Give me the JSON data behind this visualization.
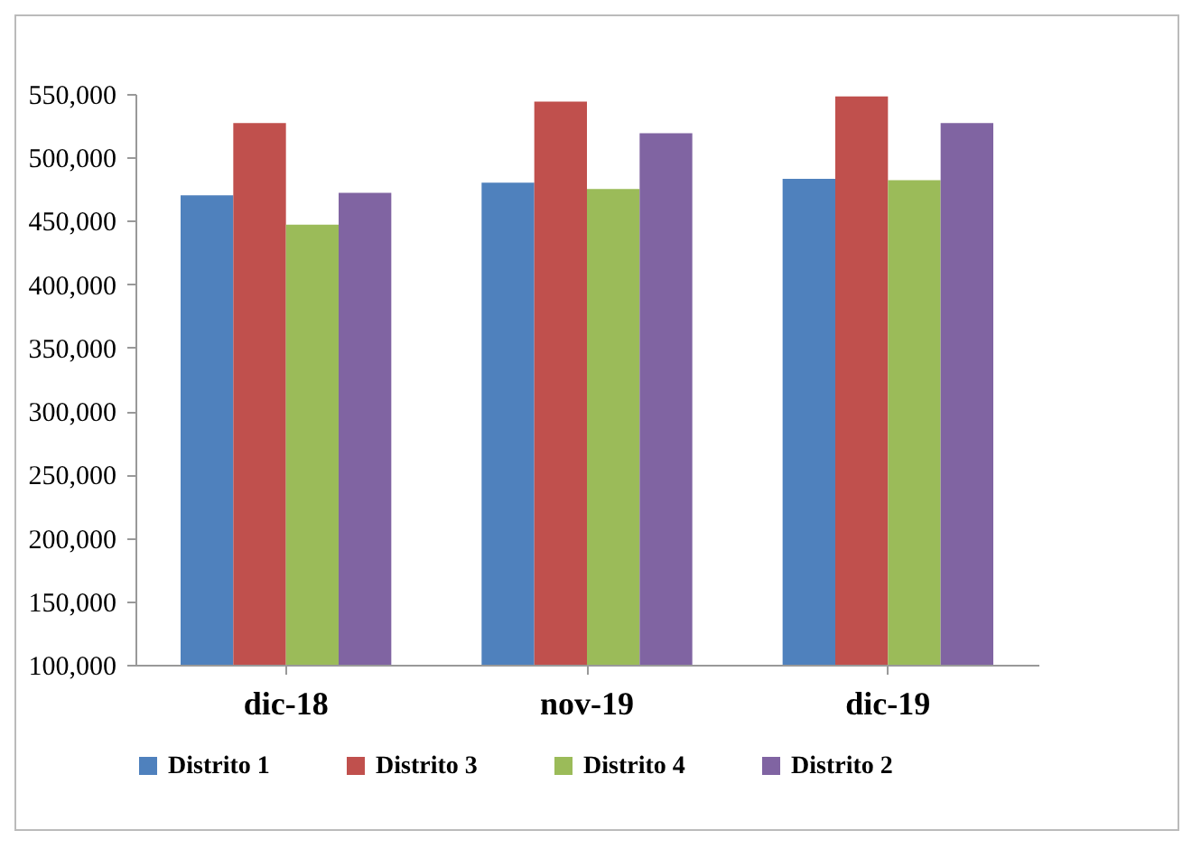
{
  "chart_data": {
    "type": "bar",
    "categories": [
      "dic-18",
      "nov-19",
      "dic-19"
    ],
    "series": [
      {
        "name": "Distrito 1",
        "color": "#4f81bd",
        "values": [
          470000,
          480000,
          483000
        ]
      },
      {
        "name": "Distrito 3",
        "color": "#c0504d",
        "values": [
          527000,
          544000,
          548000
        ]
      },
      {
        "name": "Distrito 4",
        "color": "#9bbb59",
        "values": [
          447000,
          475000,
          482000
        ]
      },
      {
        "name": "Distrito 2",
        "color": "#8064a2",
        "values": [
          472000,
          519000,
          527000
        ]
      }
    ],
    "ylim": [
      100000,
      550000
    ],
    "yticks": [
      {
        "value": 100000,
        "label": "100,000"
      },
      {
        "value": 150000,
        "label": "150,000"
      },
      {
        "value": 200000,
        "label": "200,000"
      },
      {
        "value": 250000,
        "label": "250,000"
      },
      {
        "value": 300000,
        "label": "300,000"
      },
      {
        "value": 350000,
        "label": "350,000"
      },
      {
        "value": 400000,
        "label": "400,000"
      },
      {
        "value": 450000,
        "label": "450,000"
      },
      {
        "value": 500000,
        "label": "500,000"
      },
      {
        "value": 550000,
        "label": "550,000"
      }
    ],
    "grid": false,
    "legend": "bottom"
  }
}
